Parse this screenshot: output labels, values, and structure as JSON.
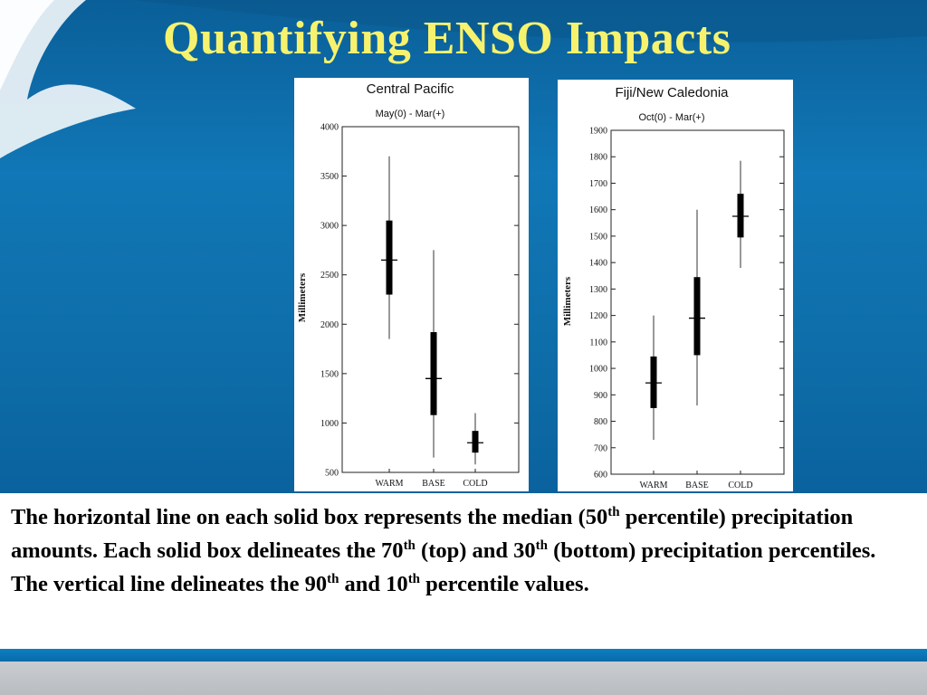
{
  "slide": {
    "title": "Quantifying ENSO Impacts",
    "title_color": "#f7f26e",
    "background_color": "#0b6aa6"
  },
  "caption": {
    "part1": "The horizontal line on each solid box represents the median (50",
    "sup1": "th",
    "part2": " percentile) precipitation amounts.  Each solid box delineates the 70",
    "sup2": "th",
    "part3": " (top) and 30",
    "sup3": "th",
    "part4": " (bottom) precipitation percentiles. The vertical line delineates the 90",
    "sup4": "th",
    "part5": " and 10",
    "sup5": "th",
    "part6": " percentile values."
  },
  "chart_data": [
    {
      "type": "box",
      "title": "Central Pacific",
      "subtitle": "May(0) - Mar(+)",
      "ylabel": "Millimeters",
      "ylim": [
        500,
        4000
      ],
      "yticks": [
        500,
        1000,
        1500,
        2000,
        2500,
        3000,
        3500,
        4000
      ],
      "categories": [
        "WARM",
        "BASE",
        "COLD"
      ],
      "boxes": [
        {
          "category": "WARM",
          "p10": 1850,
          "p30": 2300,
          "median": 2650,
          "p70": 3050,
          "p90": 3700
        },
        {
          "category": "BASE",
          "p10": 650,
          "p30": 1080,
          "median": 1450,
          "p70": 1920,
          "p90": 2750
        },
        {
          "category": "COLD",
          "p10": 580,
          "p30": 700,
          "median": 800,
          "p70": 920,
          "p90": 1100
        }
      ]
    },
    {
      "type": "box",
      "title": "Fiji/New Caledonia",
      "subtitle": "Oct(0) - Mar(+)",
      "ylabel": "Millimeters",
      "ylim": [
        600,
        1900
      ],
      "yticks": [
        600,
        700,
        800,
        900,
        1000,
        1100,
        1200,
        1300,
        1400,
        1500,
        1600,
        1700,
        1800,
        1900
      ],
      "categories": [
        "WARM",
        "BASE",
        "COLD"
      ],
      "boxes": [
        {
          "category": "WARM",
          "p10": 730,
          "p30": 850,
          "median": 945,
          "p70": 1045,
          "p90": 1200
        },
        {
          "category": "BASE",
          "p10": 860,
          "p30": 1050,
          "median": 1190,
          "p70": 1345,
          "p90": 1600
        },
        {
          "category": "COLD",
          "p10": 1380,
          "p30": 1495,
          "median": 1575,
          "p70": 1660,
          "p90": 1785
        }
      ]
    }
  ]
}
